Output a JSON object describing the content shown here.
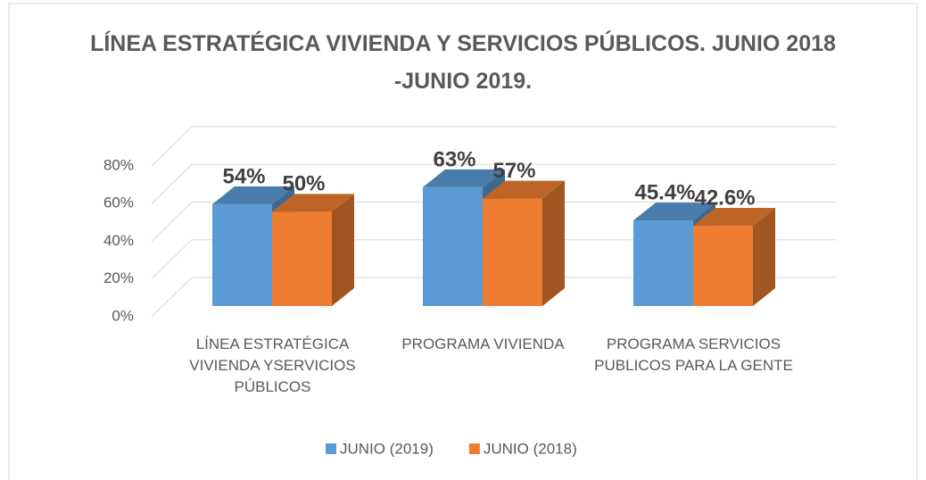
{
  "chart_data": {
    "type": "bar3d",
    "title": "LÍNEA ESTRATÉGICA VIVIENDA Y SERVICIOS PÚBLICOS. JUNIO 2018 -JUNIO 2019.",
    "categories": [
      "LÍNEA ESTRATÉGICA VIVIENDA YSERVICIOS PÚBLICOS",
      "PROGRAMA VIVIENDA",
      "PROGRAMA SERVICIOS PUBLICOS PARA LA GENTE"
    ],
    "series": [
      {
        "name": "JUNIO (2019)",
        "color": "#5b9bd5",
        "values": [
          54,
          63,
          45.4
        ],
        "value_labels": [
          "54%",
          "63%",
          "45.4%"
        ]
      },
      {
        "name": "JUNIO (2018)",
        "color": "#ed7d31",
        "values": [
          50,
          57,
          42.6
        ],
        "value_labels": [
          "50%",
          "57%",
          "42.6%"
        ]
      }
    ],
    "ylim": [
      0,
      80
    ],
    "yticks": [
      {
        "value": 0,
        "label": "0%"
      },
      {
        "value": 20,
        "label": "20%"
      },
      {
        "value": 40,
        "label": "40%"
      },
      {
        "value": 60,
        "label": "60%"
      },
      {
        "value": 80,
        "label": "80%"
      }
    ],
    "grid": true,
    "legend": "bottom"
  }
}
